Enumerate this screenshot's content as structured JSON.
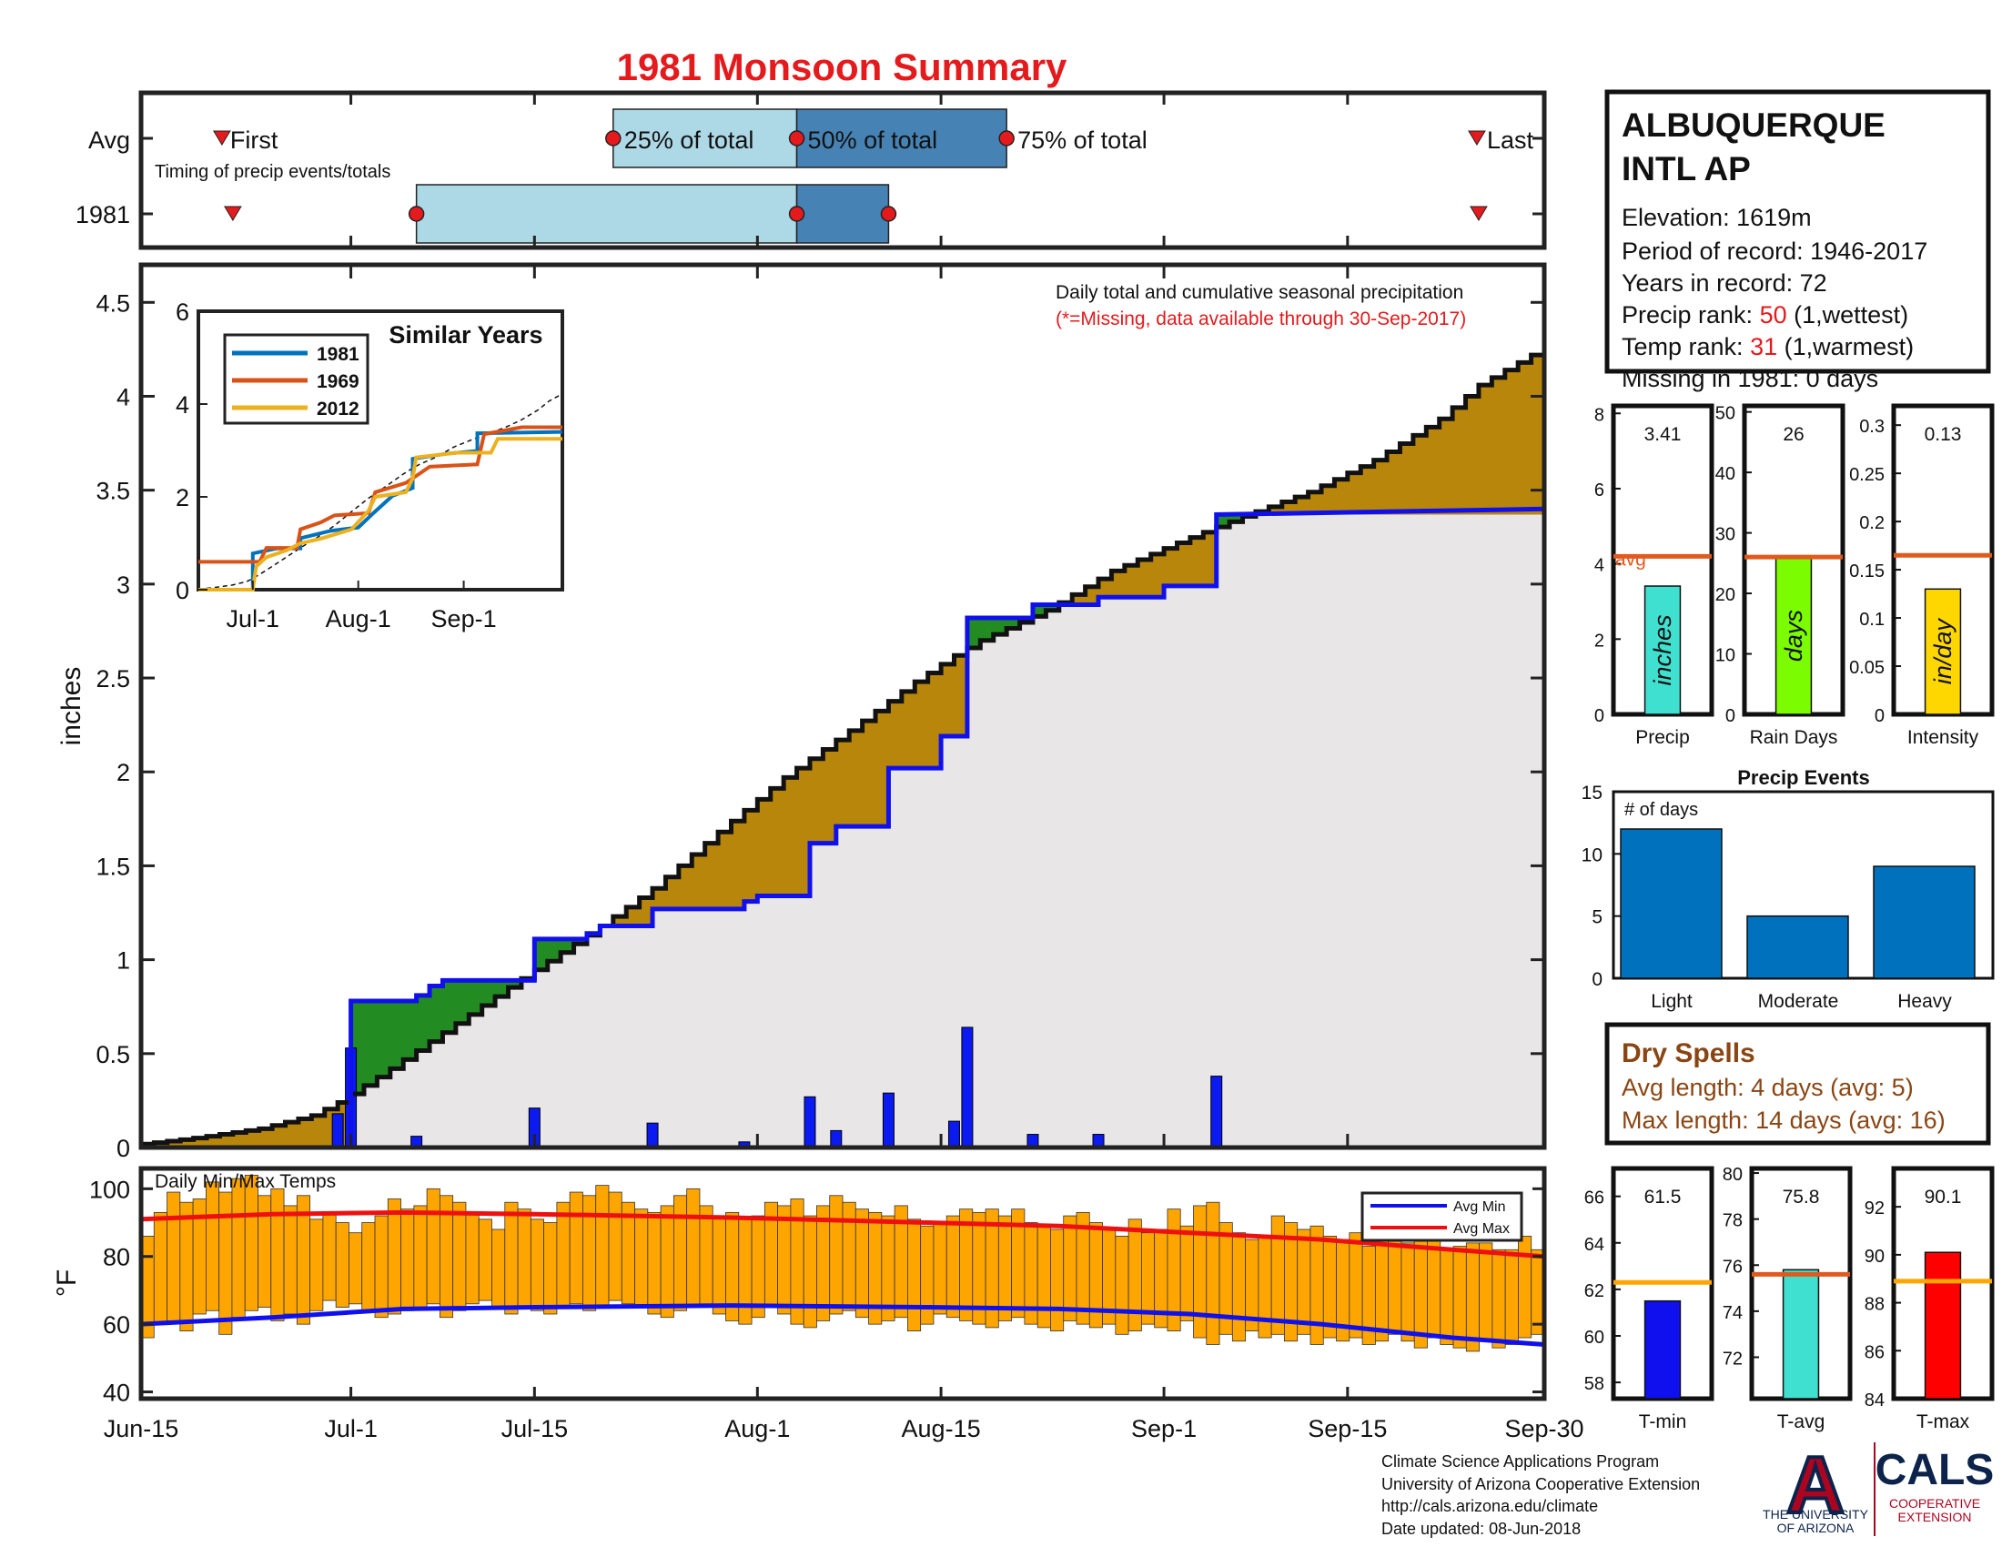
{
  "title": "1981 Monsoon Summary",
  "timing_panel": {
    "row_labels": [
      "Avg",
      "1981"
    ],
    "subtitle": "Timing of precip events/totals",
    "avg_labels": {
      "first": "First",
      "p25": "25% of total",
      "p50": "50% of total",
      "p75": "75% of total",
      "last": "Last"
    }
  },
  "station": {
    "name_line1": "ALBUQUERQUE",
    "name_line2": "INTL AP",
    "elevation": "Elevation: 1619m",
    "period": "Period of record: 1946-2017",
    "years": "Years in record: 72",
    "precip_rank_label": "Precip rank: ",
    "precip_rank_value": "50",
    "precip_rank_note": " (1,wettest)",
    "temp_rank_label": "Temp rank: ",
    "temp_rank_value": "31",
    "temp_rank_note": " (1,warmest)",
    "missing": "Missing in 1981: 0 days"
  },
  "main_panel": {
    "legend_line1": "Daily total and cumulative seasonal precipitation",
    "legend_line2": "(*=Missing, data available through 30-Sep-2017)",
    "ylabel": "inches"
  },
  "inset": {
    "title": "Similar Years"
  },
  "temp_panel": {
    "label": "Daily Min/Max Temps",
    "ylabel": "°F",
    "legend_min": "Avg Min",
    "legend_max": "Avg Max"
  },
  "stat_bars": {
    "avg_label": "avg"
  },
  "events": {
    "title": "Precip Events",
    "ylabel": "# of days"
  },
  "dry_spells": {
    "title": "Dry Spells",
    "avg": "Avg length: 4 days (avg: 5)",
    "max": "Max length: 14 days (avg: 16)"
  },
  "footer": {
    "line1": "Climate Science Applications Program",
    "line2": "University of Arizona Cooperative Extension",
    "line3": "http://cals.arizona.edu/climate",
    "line4": " Date updated: 08-Jun-2018"
  },
  "logos": {
    "ua_letter": "A",
    "ua_text1": "THE UNIVERSITY",
    "ua_text2": "OF ARIZONA",
    "cals": "CALS",
    "cals_sub1": "COOPERATIVE",
    "cals_sub2": "EXTENSION"
  },
  "colors": {
    "title_red": "#e41a1c",
    "above_avg": "#b8860b",
    "below_avg": "#228b22",
    "avg_cumulative": "#1010ee",
    "daily_bar": "#0a1af0",
    "temp_bar": "#ffa500",
    "precip_bar": "#40e0d0",
    "raindays_bar": "#7cfc00",
    "intensity_bar": "#ffd700",
    "events_bar": "#0072bd",
    "dry_spells": "#8b4513",
    "light_blue": "#add8e6",
    "steel_blue": "#4682b4"
  },
  "chart_data": [
    {
      "type": "timing",
      "avg": {
        "first": "Jun-22",
        "p25": "Jul-21",
        "p50": "Aug-4",
        "p75": "Aug-20",
        "last": "Sep-25"
      },
      "year_1981": {
        "first": "Jun-22",
        "p25": "Jul-6",
        "p50": "Aug-4",
        "p75": "Aug-11",
        "last": "Sep-25"
      }
    },
    {
      "type": "line",
      "title": "",
      "xlabel": "",
      "ylabel": "inches",
      "xlim": [
        "Jun-15",
        "Sep-30"
      ],
      "ylim": [
        0,
        4.7
      ],
      "x_ticks": [
        {
          "label": "Jun-15",
          "day": 0
        },
        {
          "label": "Jul-1",
          "day": 16
        },
        {
          "label": "Jul-15",
          "day": 30
        },
        {
          "label": "Aug-1",
          "day": 47
        },
        {
          "label": "Aug-15",
          "day": 61
        },
        {
          "label": "Sep-1",
          "day": 78
        },
        {
          "label": "Sep-15",
          "day": 92
        },
        {
          "label": "Sep-30",
          "day": 107
        }
      ],
      "y_ticks": [
        0,
        0.5,
        1,
        1.5,
        2,
        2.5,
        3,
        3.5,
        4,
        4.5
      ],
      "series": [
        {
          "name": "1981 cumulative",
          "points": [
            [
              0,
              0
            ],
            [
              16,
              0
            ],
            [
              16,
              0.78
            ],
            [
              21,
              0.78
            ],
            [
              21,
              0.81
            ],
            [
              22,
              0.81
            ],
            [
              22,
              0.86
            ],
            [
              23,
              0.86
            ],
            [
              23,
              0.89
            ],
            [
              30,
              0.89
            ],
            [
              30,
              1.11
            ],
            [
              34,
              1.11
            ],
            [
              34,
              1.14
            ],
            [
              35,
              1.14
            ],
            [
              35,
              1.18
            ],
            [
              39,
              1.18
            ],
            [
              39,
              1.27
            ],
            [
              46,
              1.27
            ],
            [
              46,
              1.31
            ],
            [
              47,
              1.31
            ],
            [
              47,
              1.34
            ],
            [
              51,
              1.34
            ],
            [
              51,
              1.62
            ],
            [
              53,
              1.62
            ],
            [
              53,
              1.71
            ],
            [
              57,
              1.71
            ],
            [
              57,
              2.02
            ],
            [
              61,
              2.02
            ],
            [
              61,
              2.19
            ],
            [
              63,
              2.19
            ],
            [
              63,
              2.82
            ],
            [
              68,
              2.82
            ],
            [
              68,
              2.89
            ],
            [
              73,
              2.89
            ],
            [
              73,
              2.93
            ],
            [
              78,
              2.93
            ],
            [
              78,
              2.99
            ],
            [
              82,
              2.99
            ],
            [
              82,
              3.37
            ],
            [
              107,
              3.4
            ]
          ]
        },
        {
          "name": "avg cumulative",
          "points": [
            [
              0,
              0.01
            ],
            [
              5,
              0.05
            ],
            [
              10,
              0.1
            ],
            [
              14,
              0.17
            ],
            [
              16,
              0.24
            ],
            [
              20,
              0.42
            ],
            [
              25,
              0.66
            ],
            [
              30,
              0.9
            ],
            [
              35,
              1.13
            ],
            [
              40,
              1.38
            ],
            [
              45,
              1.68
            ],
            [
              50,
              1.97
            ],
            [
              55,
              2.22
            ],
            [
              60,
              2.48
            ],
            [
              63,
              2.62
            ],
            [
              65,
              2.7
            ],
            [
              70,
              2.86
            ],
            [
              75,
              3.07
            ],
            [
              80,
              3.22
            ],
            [
              85,
              3.36
            ],
            [
              90,
              3.49
            ],
            [
              95,
              3.66
            ],
            [
              100,
              3.88
            ],
            [
              103,
              4.06
            ],
            [
              107,
              4.22
            ]
          ]
        }
      ],
      "daily_bars": [
        {
          "day": 15,
          "value": 0.18
        },
        {
          "day": 16,
          "value": 0.53
        },
        {
          "day": 21,
          "value": 0.06
        },
        {
          "day": 30,
          "value": 0.21
        },
        {
          "day": 39,
          "value": 0.13
        },
        {
          "day": 46,
          "value": 0.03
        },
        {
          "day": 51,
          "value": 0.27
        },
        {
          "day": 53,
          "value": 0.09
        },
        {
          "day": 57,
          "value": 0.29
        },
        {
          "day": 62,
          "value": 0.14
        },
        {
          "day": 63,
          "value": 0.64
        },
        {
          "day": 68,
          "value": 0.07
        },
        {
          "day": 73,
          "value": 0.07
        },
        {
          "day": 82,
          "value": 0.38
        }
      ]
    },
    {
      "type": "line",
      "title": "Similar Years",
      "xlabel": "",
      "ylabel": "",
      "ylim": [
        0,
        6
      ],
      "y_ticks": [
        0,
        2,
        4,
        6
      ],
      "x_ticks": [
        "Jul-1",
        "Aug-1",
        "Sep-1"
      ],
      "series": [
        {
          "name": "1981",
          "points": [
            [
              0,
              0
            ],
            [
              16,
              0
            ],
            [
              16,
              0.78
            ],
            [
              23,
              0.89
            ],
            [
              30,
              0.89
            ],
            [
              30,
              1.11
            ],
            [
              39,
              1.27
            ],
            [
              47,
              1.34
            ],
            [
              51,
              1.62
            ],
            [
              57,
              2.02
            ],
            [
              63,
              2.19
            ],
            [
              63,
              2.82
            ],
            [
              73,
              2.93
            ],
            [
              82,
              2.99
            ],
            [
              82,
              3.37
            ],
            [
              107,
              3.4
            ]
          ]
        },
        {
          "name": "1969",
          "points": [
            [
              0,
              0.6
            ],
            [
              16,
              0.6
            ],
            [
              18,
              0.6
            ],
            [
              20,
              0.9
            ],
            [
              29,
              0.9
            ],
            [
              30,
              1.3
            ],
            [
              36,
              1.45
            ],
            [
              40,
              1.6
            ],
            [
              50,
              1.65
            ],
            [
              52,
              2.1
            ],
            [
              61,
              2.3
            ],
            [
              65,
              2.5
            ],
            [
              68,
              2.65
            ],
            [
              82,
              2.7
            ],
            [
              84,
              3.35
            ],
            [
              95,
              3.5
            ],
            [
              107,
              3.5
            ]
          ]
        },
        {
          "name": "2012",
          "points": [
            [
              0,
              0
            ],
            [
              16,
              0
            ],
            [
              17,
              0.5
            ],
            [
              20,
              0.7
            ],
            [
              26,
              0.85
            ],
            [
              30,
              1.0
            ],
            [
              36,
              1.1
            ],
            [
              45,
              1.3
            ],
            [
              50,
              1.7
            ],
            [
              52,
              2.0
            ],
            [
              61,
              2.1
            ],
            [
              63,
              2.4
            ],
            [
              64,
              2.85
            ],
            [
              76,
              2.95
            ],
            [
              86,
              2.95
            ],
            [
              88,
              3.25
            ],
            [
              107,
              3.25
            ]
          ]
        }
      ]
    },
    {
      "type": "bar",
      "title": "Daily Min/Max Temps",
      "ylabel": "°F",
      "ylim": [
        38,
        106
      ],
      "y_ticks": [
        40,
        60,
        80,
        100
      ],
      "series": [
        {
          "name": "Avg Min",
          "points": [
            [
              0,
              60
            ],
            [
              10,
              62
            ],
            [
              20,
              64.5
            ],
            [
              30,
              65
            ],
            [
              45,
              65.5
            ],
            [
              60,
              65
            ],
            [
              70,
              64.5
            ],
            [
              80,
              63
            ],
            [
              90,
              60
            ],
            [
              100,
              56
            ],
            [
              107,
              54
            ]
          ]
        },
        {
          "name": "Avg Max",
          "points": [
            [
              0,
              91
            ],
            [
              10,
              92.5
            ],
            [
              20,
              93
            ],
            [
              30,
              92.5
            ],
            [
              45,
              91.5
            ],
            [
              60,
              90
            ],
            [
              70,
              89
            ],
            [
              80,
              87
            ],
            [
              90,
              85
            ],
            [
              100,
              82
            ],
            [
              107,
              80
            ]
          ]
        }
      ],
      "daily_max": [
        86,
        93,
        99,
        96,
        97,
        102,
        99,
        103,
        104,
        98,
        100,
        95,
        98,
        91,
        93,
        90,
        87,
        90,
        92,
        97,
        94,
        95,
        100,
        98,
        96,
        93,
        91,
        88,
        96,
        94,
        91,
        90,
        96,
        99,
        98,
        101,
        99,
        96,
        94,
        93,
        95,
        98,
        100,
        95,
        92,
        93,
        91,
        92,
        96,
        95,
        97,
        92,
        95,
        98,
        96,
        94,
        93,
        92,
        95,
        91,
        89,
        90,
        92,
        94,
        93,
        94,
        92,
        94,
        90,
        89,
        88,
        92,
        93,
        90,
        88,
        86,
        91,
        87,
        88,
        94,
        89,
        95,
        96,
        90,
        87,
        85,
        86,
        92,
        90,
        88,
        89,
        86,
        85,
        87,
        83,
        88,
        87,
        84,
        85,
        86,
        82,
        83,
        84,
        84,
        82,
        82,
        86,
        82
      ],
      "daily_min": [
        56,
        60,
        61,
        58,
        63,
        64,
        57,
        62,
        64,
        65,
        61,
        63,
        60,
        64,
        67,
        65,
        66,
        64,
        62,
        63,
        64,
        65,
        66,
        62,
        64,
        66,
        67,
        65,
        63,
        65,
        64,
        63,
        65,
        66,
        64,
        65,
        67,
        66,
        65,
        63,
        62,
        64,
        65,
        66,
        63,
        61,
        60,
        62,
        65,
        63,
        60,
        59,
        61,
        63,
        64,
        62,
        60,
        61,
        62,
        58,
        60,
        63,
        62,
        61,
        60,
        59,
        61,
        62,
        60,
        59,
        58,
        61,
        60,
        59,
        60,
        57,
        58,
        60,
        59,
        58,
        61,
        56,
        54,
        57,
        55,
        58,
        56,
        57,
        55,
        57,
        54,
        56,
        55,
        56,
        54,
        55,
        57,
        55,
        53,
        56,
        54,
        53,
        52,
        55,
        53,
        54,
        56,
        57
      ]
    },
    {
      "type": "bar",
      "categories": [
        "Precip"
      ],
      "values": [
        3.41
      ],
      "avg": 4.2,
      "ylim": [
        0,
        8.2
      ],
      "y_ticks": [
        0,
        2,
        4,
        6,
        8
      ],
      "unit_label": "inches",
      "xlabel": "Precip"
    },
    {
      "type": "bar",
      "categories": [
        "Rain Days"
      ],
      "values": [
        26
      ],
      "avg": 26,
      "ylim": [
        0,
        51
      ],
      "y_ticks": [
        0,
        10,
        20,
        30,
        40,
        50
      ],
      "unit_label": "days",
      "xlabel": "Rain Days"
    },
    {
      "type": "bar",
      "categories": [
        "Intensity"
      ],
      "values": [
        0.13
      ],
      "avg": 0.165,
      "ylim": [
        0,
        0.32
      ],
      "y_ticks": [
        0,
        0.05,
        0.1,
        0.15,
        0.2,
        0.25,
        0.3
      ],
      "unit_label": "in/day",
      "xlabel": "Intensity"
    },
    {
      "type": "bar",
      "title": "Precip Events",
      "categories": [
        "Light",
        "Moderate",
        "Heavy"
      ],
      "values": [
        12,
        5,
        9
      ],
      "ylim": [
        0,
        15
      ],
      "y_ticks": [
        0,
        5,
        10,
        15
      ],
      "ylabel": "# of days"
    },
    {
      "type": "bar",
      "categories": [
        "T-min"
      ],
      "values": [
        61.5
      ],
      "avg": 62.3,
      "ylim": [
        57.3,
        67.2
      ],
      "y_ticks": [
        58,
        60,
        62,
        64,
        66
      ],
      "xlabel": "T-min"
    },
    {
      "type": "bar",
      "categories": [
        "T-avg"
      ],
      "values": [
        75.8
      ],
      "avg": 75.6,
      "ylim": [
        70.2,
        80.2
      ],
      "y_ticks": [
        72,
        74,
        76,
        78,
        80
      ],
      "xlabel": "T-avg"
    },
    {
      "type": "bar",
      "categories": [
        "T-max"
      ],
      "values": [
        90.1
      ],
      "avg": 88.9,
      "ylim": [
        84,
        93.6
      ],
      "y_ticks": [
        84,
        86,
        88,
        90,
        92
      ],
      "xlabel": "T-max"
    }
  ]
}
